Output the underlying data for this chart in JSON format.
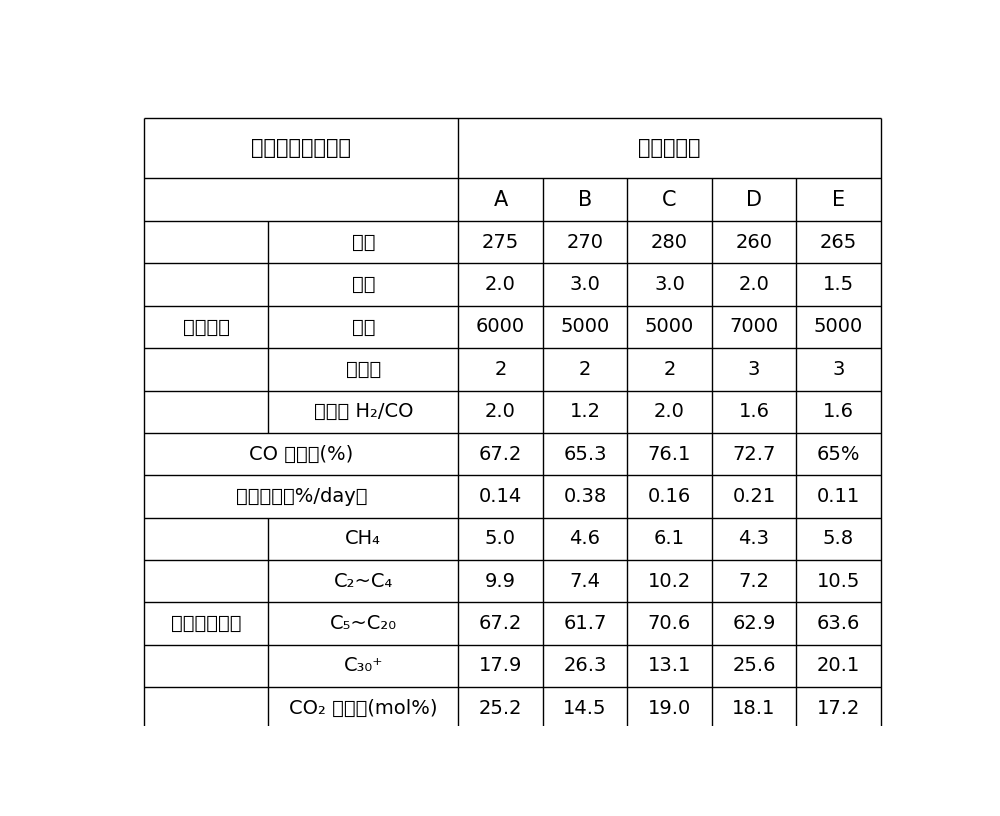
{
  "title_col1": "费托合成反应性能",
  "title_cat": "傅化剂名称",
  "cat_labels": [
    "A",
    "B",
    "C",
    "D",
    "E"
  ],
  "section1_label": "反应条件",
  "section1_rows": [
    {
      "label": "温度",
      "values": [
        "275",
        "270",
        "280",
        "260",
        "265"
      ]
    },
    {
      "label": "压力",
      "values": [
        "2.0",
        "3.0",
        "3.0",
        "2.0",
        "1.5"
      ]
    },
    {
      "label": "空速",
      "values": [
        "6000",
        "5000",
        "5000",
        "7000",
        "5000"
      ]
    },
    {
      "label": "循环比",
      "values": [
        "2",
        "2",
        "2",
        "3",
        "3"
      ]
    },
    {
      "label": "原料气 H₂/CO",
      "values": [
        "2.0",
        "1.2",
        "2.0",
        "1.6",
        "1.6"
      ]
    }
  ],
  "section2_label": "CO 转化率(%)",
  "section2_values": [
    "67.2",
    "65.3",
    "76.1",
    "72.7",
    "65%"
  ],
  "section3_label": "失活速率（%/day）",
  "section3_values": [
    "0.14",
    "0.38",
    "0.16",
    "0.21",
    "0.11"
  ],
  "section4_label": "傅化剂选择性",
  "section4_rows": [
    {
      "label": "CH₄",
      "values": [
        "5.0",
        "4.6",
        "6.1",
        "4.3",
        "5.8"
      ]
    },
    {
      "label": "C₂~C₄",
      "values": [
        "9.9",
        "7.4",
        "10.2",
        "7.2",
        "10.5"
      ]
    },
    {
      "label": "C₅~C₂₀",
      "values": [
        "67.2",
        "61.7",
        "70.6",
        "62.9",
        "63.6"
      ]
    },
    {
      "label": "C₃₀⁺",
      "values": [
        "17.9",
        "26.3",
        "13.1",
        "25.6",
        "20.1"
      ]
    },
    {
      "label": "CO₂ 选择性(mol%)",
      "values": [
        "25.2",
        "14.5",
        "19.0",
        "18.1",
        "17.2"
      ]
    }
  ],
  "bg_color": "#ffffff",
  "line_color": "#000000",
  "text_color": "#000000",
  "font_size": 14,
  "header_font_size": 15
}
